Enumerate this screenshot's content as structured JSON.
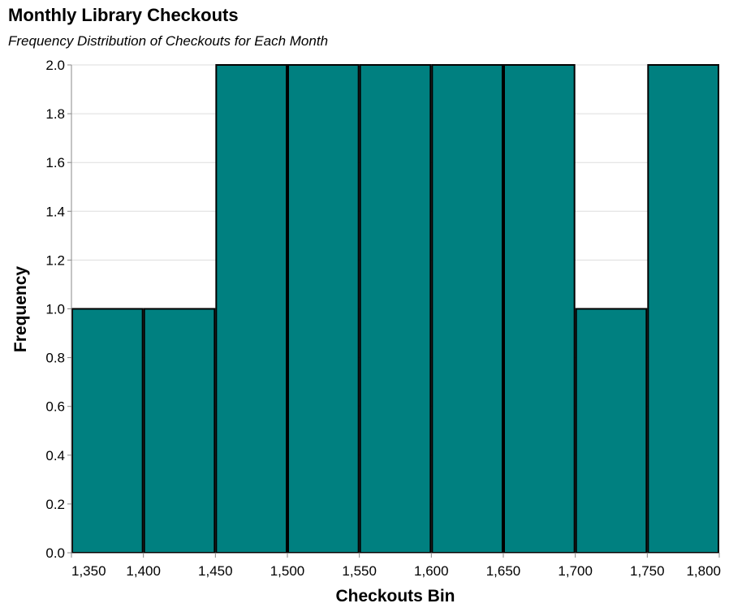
{
  "chart_data": {
    "type": "bar",
    "title": "Monthly Library Checkouts",
    "subtitle": "Frequency Distribution of Checkouts for Each Month",
    "xlabel": "Checkouts Bin",
    "ylabel": "Frequency",
    "bins": [
      {
        "start": 1325,
        "end": 1375,
        "count": 1
      },
      {
        "start": 1375,
        "end": 1425,
        "count": 1
      },
      {
        "start": 1425,
        "end": 1475,
        "count": 2
      },
      {
        "start": 1475,
        "end": 1525,
        "count": 2
      },
      {
        "start": 1525,
        "end": 1575,
        "count": 2
      },
      {
        "start": 1575,
        "end": 1625,
        "count": 2
      },
      {
        "start": 1625,
        "end": 1675,
        "count": 2
      },
      {
        "start": 1675,
        "end": 1725,
        "count": 1
      },
      {
        "start": 1725,
        "end": 1775,
        "count": 2
      }
    ],
    "xlim": [
      1325,
      1775
    ],
    "ylim": [
      0,
      2
    ],
    "x_tick_values": [
      1350,
      1400,
      1450,
      1500,
      1550,
      1600,
      1650,
      1700,
      1750,
      1800
    ],
    "x_tick_labels": [
      "1,350",
      "1,400",
      "1,450",
      "1,500",
      "1,550",
      "1,600",
      "1,650",
      "1,700",
      "1,750",
      "1,800"
    ],
    "y_ticks": [
      0.0,
      0.2,
      0.4,
      0.6,
      0.8,
      1.0,
      1.2,
      1.4,
      1.6,
      1.8,
      2.0
    ],
    "y_tick_labels": [
      "0.0",
      "0.2",
      "0.4",
      "0.6",
      "0.8",
      "1.0",
      "1.2",
      "1.4",
      "1.6",
      "1.8",
      "2.0"
    ],
    "grid": true,
    "colors": {
      "bar_fill": "#008080",
      "bar_stroke": "#000000",
      "grid": "#dddddd",
      "axis": "#888888"
    }
  }
}
